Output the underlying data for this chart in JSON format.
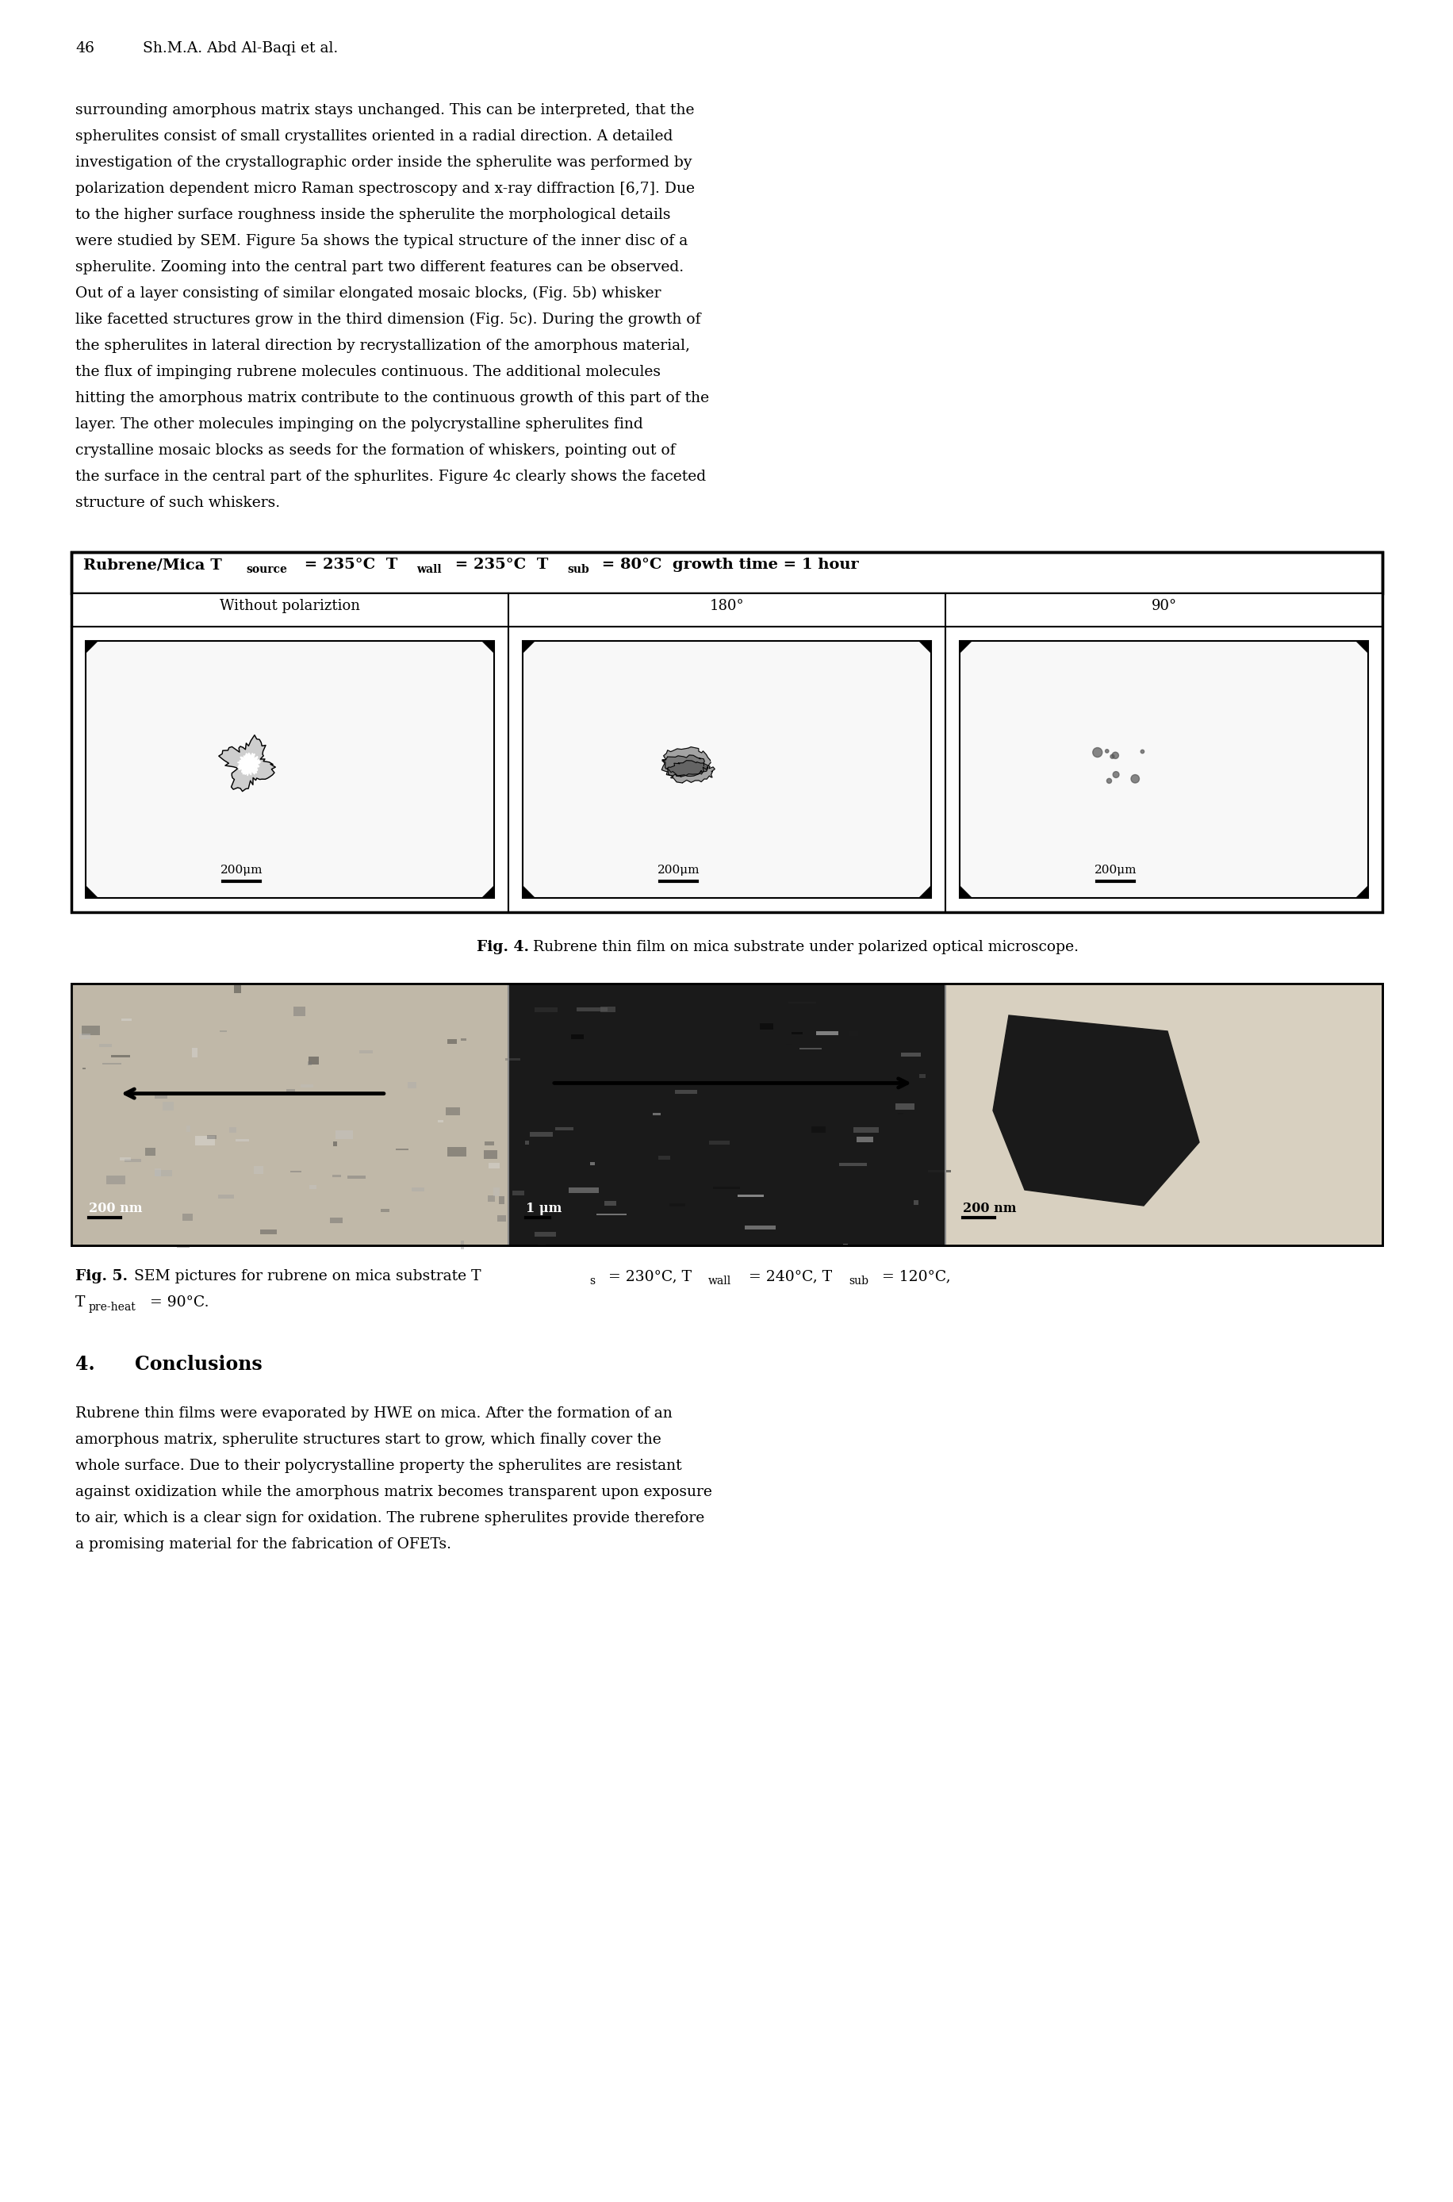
{
  "page_number": "46",
  "page_header": "Sh.M.A. Abd Al-Baqi et al.",
  "body_text": [
    "surrounding amorphous matrix stays unchanged. This can be interpreted, that the",
    "spherulites consist of small crystallites oriented in a radial direction. A detailed",
    "investigation of the crystallographic order inside the spherulite was performed by",
    "polarization dependent micro Raman spectroscopy and x-ray diffraction [6,7]. Due",
    "to the higher surface roughness inside the spherulite the morphological details",
    "were studied by SEM. Figure 5a shows the typical structure of the inner disc of a",
    "spherulite. Zooming into the central part two different features can be observed.",
    "Out of a layer consisting of similar elongated mosaic blocks, (Fig. 5b) whisker",
    "like facetted structures grow in the third dimension (Fig. 5c). During the growth of",
    "the spherulites in lateral direction by recrystallization of the amorphous material,",
    "the flux of impinging rubrene molecules continuous. The additional molecules",
    "hitting the amorphous matrix contribute to the continuous growth of this part of the",
    "layer. The other molecules impinging on the polycrystalline spherulites find",
    "crystalline mosaic blocks as seeds for the formation of whiskers, pointing out of",
    "the surface in the central part of the sphurlites. Figure 4c clearly shows the faceted",
    "structure of such whiskers."
  ],
  "col_headers": [
    "Without polariztion",
    "180°",
    "90°"
  ],
  "scale_bar_label": "200μm",
  "fig4_caption_bold": "Fig. 4.",
  "fig4_caption_rest": " Rubrene thin film on mica substrate under polarized optical microscope.",
  "conclusions_text": [
    "Rubrene thin films were evaporated by HWE on mica. After the formation of an",
    "amorphous matrix, spherulite structures start to grow, which finally cover the",
    "whole surface. Due to their polycrystalline property the spherulites are resistant",
    "against oxidization while the amorphous matrix becomes transparent upon exposure",
    "to air, which is a clear sign for oxidation. The rubrene spherulites provide therefore",
    "a promising material for the fabrication of OFETs."
  ],
  "background_color": "#ffffff"
}
